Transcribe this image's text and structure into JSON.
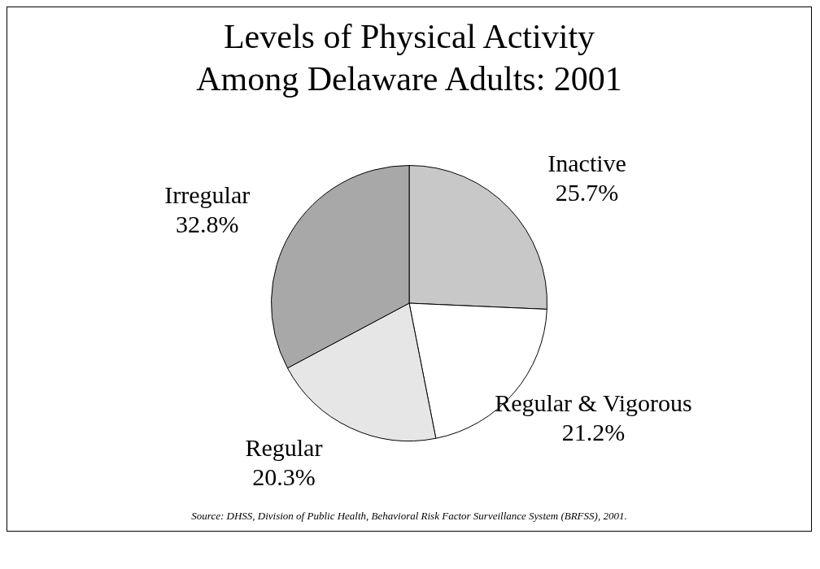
{
  "chart_data": {
    "type": "pie",
    "title": "Levels of Physical Activity Among Delaware Adults: 2001",
    "categories": [
      "Inactive",
      "Regular & Vigorous",
      "Regular",
      "Irregular"
    ],
    "values": [
      25.7,
      21.2,
      20.3,
      32.8
    ],
    "value_labels": [
      "25.7%",
      "21.2%",
      "20.3%",
      "32.8%"
    ],
    "colors": [
      "#c8c8c8",
      "#ffffff",
      "#e6e6e6",
      "#a8a8a8"
    ],
    "legend": false,
    "annotations": [
      "Source:  DHSS, Division of Public Health, Behavioral Risk Factor Surveillance System (BRFSS), 2001."
    ]
  }
}
